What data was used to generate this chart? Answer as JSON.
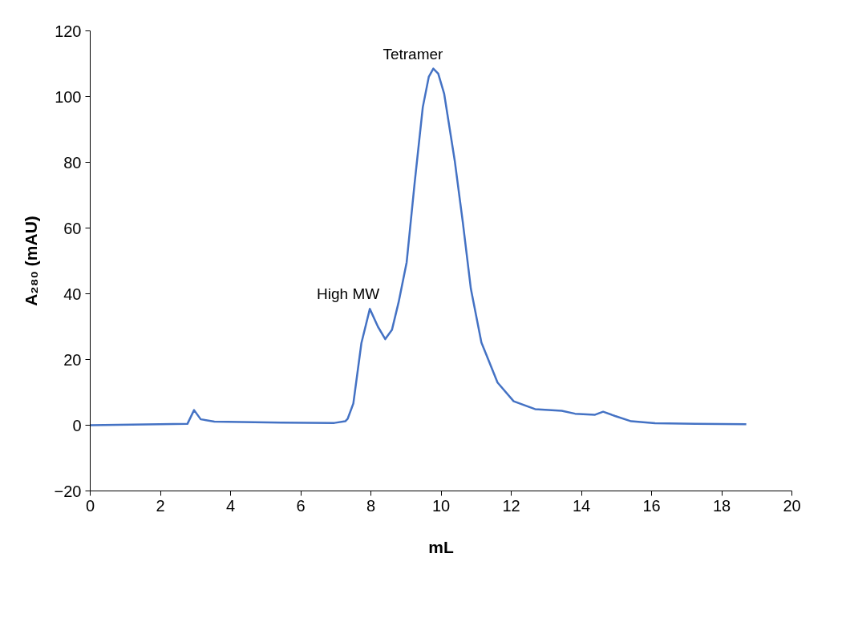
{
  "chart_data": {
    "type": "line",
    "xlabel": "mL",
    "ylabel": "A₂₈₀ (mAU)",
    "xlim": [
      0,
      20
    ],
    "xticks": [
      0,
      2,
      4,
      6,
      8,
      10,
      12,
      14,
      16,
      18,
      20
    ],
    "ylim": [
      -20,
      120
    ],
    "yticks": [
      -20,
      0,
      20,
      40,
      60,
      80,
      100,
      120
    ],
    "grid": false,
    "marker": "none",
    "line_style": "solid",
    "series": [
      {
        "color": "#4472c4",
        "x": [
          0,
          2.77,
          2.96,
          3.15,
          3.54,
          5.44,
          6.96,
          7.27,
          7.34,
          7.5,
          7.73,
          7.97,
          8.2,
          8.41,
          8.6,
          8.79,
          9.02,
          9.25,
          9.48,
          9.65,
          9.78,
          9.92,
          10.09,
          10.39,
          10.62,
          10.85,
          11.15,
          11.61,
          12.07,
          12.68,
          13.44,
          13.82,
          14.39,
          14.62,
          14.96,
          15.42,
          16.1,
          17.25,
          18.7
        ],
        "values": [
          0,
          0.4,
          4.6,
          1.8,
          1.1,
          0.8,
          0.7,
          1.2,
          2,
          6.6,
          25,
          35.4,
          30,
          26.2,
          29,
          37.4,
          49.6,
          74,
          96.8,
          106,
          108.5,
          107,
          100.8,
          80.5,
          61.8,
          41.5,
          25.2,
          13,
          7.3,
          4.9,
          4.4,
          3.5,
          3.2,
          4.1,
          2.8,
          1.2,
          0.6,
          0.4,
          0.3
        ]
      }
    ],
    "annotations": [
      {
        "text": "High MW",
        "x": 7.97,
        "y": 35.4
      },
      {
        "text": "Tetramer",
        "x": 9.78,
        "y": 108.5
      }
    ]
  }
}
